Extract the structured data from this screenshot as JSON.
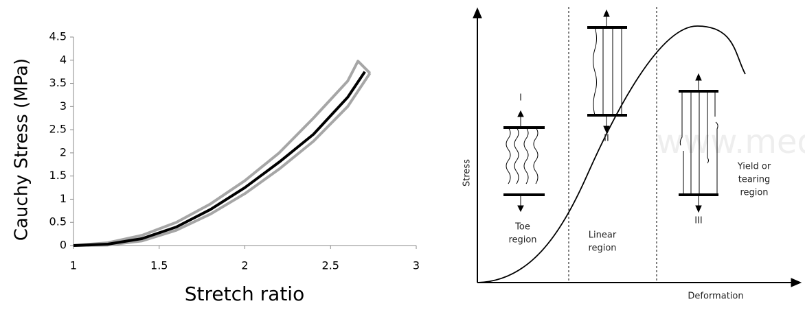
{
  "chart_data": {
    "type": "line",
    "xlabel": "Stretch ratio",
    "ylabel": "Cauchy Stress (MPa)",
    "xlim": [
      1,
      3
    ],
    "xticks": [
      1,
      1.5,
      2,
      2.5,
      3
    ],
    "ylim": [
      0,
      4.5
    ],
    "yticks": [
      0,
      0.5,
      1,
      1.5,
      2,
      2.5,
      3,
      3.5,
      4,
      4.5
    ],
    "series": [
      {
        "color": "#a6a6a6",
        "x": [
          1,
          1.2,
          1.4,
          1.6,
          1.8,
          2,
          2.2,
          2.4,
          2.6,
          2.66,
          2.73
        ],
        "values": [
          0,
          0.06,
          0.22,
          0.5,
          0.9,
          1.4,
          2.0,
          2.75,
          3.55,
          3.98,
          3.72
        ]
      },
      {
        "color": "#a6a6a6",
        "x": [
          1,
          1.2,
          1.4,
          1.6,
          1.8,
          2,
          2.2,
          2.4,
          2.6,
          2.73
        ],
        "values": [
          0,
          0.01,
          0.1,
          0.33,
          0.68,
          1.12,
          1.65,
          2.25,
          3.0,
          3.72
        ]
      },
      {
        "color": "#000000",
        "x": [
          1,
          1.2,
          1.4,
          1.6,
          1.8,
          2,
          2.2,
          2.4,
          2.6,
          2.7
        ],
        "values": [
          0,
          0.03,
          0.15,
          0.4,
          0.78,
          1.25,
          1.8,
          2.4,
          3.2,
          3.75
        ]
      }
    ]
  },
  "diagram": {
    "y_axis_label": "Stress",
    "x_axis_label": "Deformation",
    "stage_1": "I",
    "stage_2": "II",
    "stage_3": "III",
    "toe_label": [
      "Toe",
      "region"
    ],
    "linear_label": [
      "Linear",
      "region"
    ],
    "yield_label": [
      "Yield or",
      "tearing",
      "region"
    ],
    "watermark": "www.medi"
  }
}
